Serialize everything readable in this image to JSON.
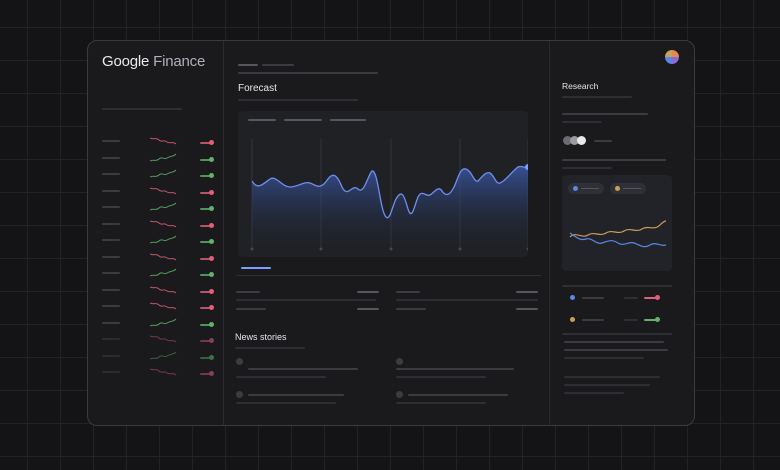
{
  "app": {
    "logo_word_1": "Google",
    "logo_word_2": "Finance"
  },
  "forecast": {
    "title": "Forecast"
  },
  "news": {
    "title": "News stories"
  },
  "research": {
    "title": "Research"
  },
  "colors": {
    "accent": "#7aa0ff",
    "up": "#5fb36c",
    "down": "#e0607a",
    "chart_line": "#5b7fe0",
    "gold": "#c9a05a"
  },
  "watchlist": [
    {
      "trend": "down"
    },
    {
      "trend": "up"
    },
    {
      "trend": "up"
    },
    {
      "trend": "down"
    },
    {
      "trend": "up"
    },
    {
      "trend": "down"
    },
    {
      "trend": "up"
    },
    {
      "trend": "down"
    },
    {
      "trend": "up"
    },
    {
      "trend": "down"
    },
    {
      "trend": "down"
    },
    {
      "trend": "up"
    },
    {
      "trend": "down"
    },
    {
      "trend": "up"
    },
    {
      "trend": "down"
    }
  ],
  "icons": [
    "avatar-icon",
    "series-dot-icon",
    "news-source-icon"
  ]
}
